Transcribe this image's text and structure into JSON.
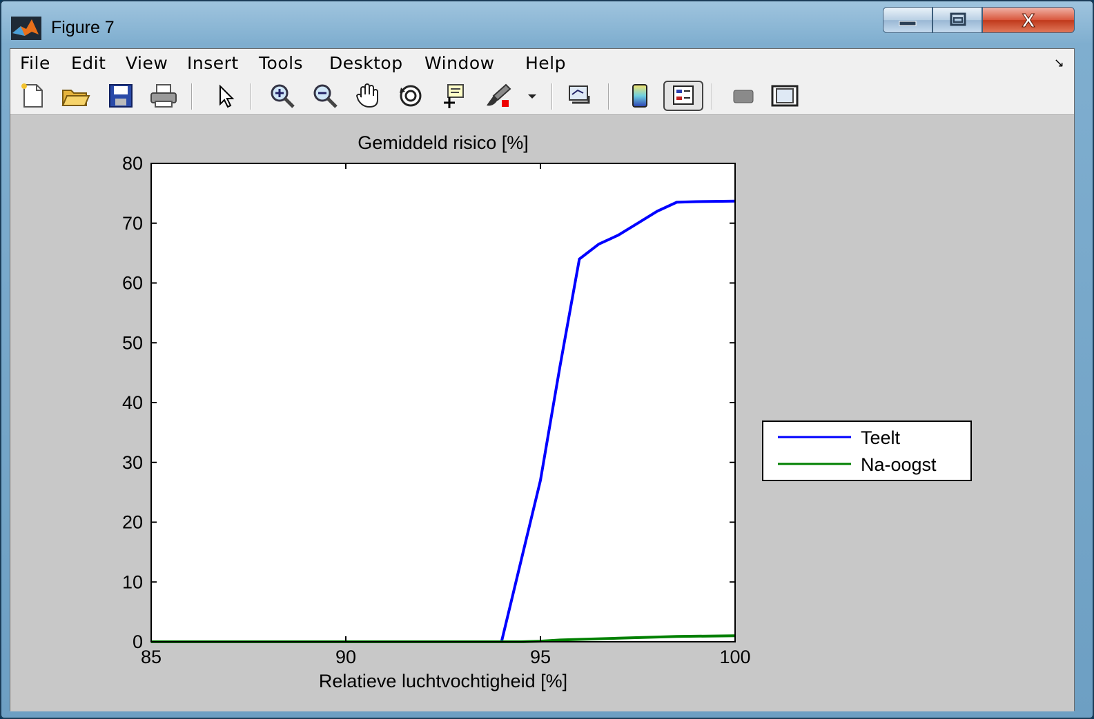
{
  "window": {
    "title": "Figure 7",
    "min_icon": "minimize-icon",
    "max_icon": "maximize-icon",
    "close_icon": "close-icon",
    "close_glyph": "X"
  },
  "menu": [
    "File",
    "Edit",
    "View",
    "Insert",
    "Tools",
    "Desktop",
    "Window",
    "Help"
  ],
  "toolbar": [
    "new-figure-icon",
    "open-file-icon",
    "save-icon",
    "print-icon",
    "pointer-icon",
    "zoom-in-icon",
    "zoom-out-icon",
    "pan-hand-icon",
    "rotate-3d-icon",
    "data-cursor-icon",
    "brush-icon",
    "dropdown-arrow-icon",
    "link-plot-icon",
    "colorbar-icon",
    "legend-icon",
    "hide-plot-tools-icon",
    "show-plot-tools-icon"
  ],
  "colors": {
    "teelt": "#0000ff",
    "naoogst": "#008000"
  },
  "chart_data": {
    "type": "line",
    "title": "Gemiddeld risico [%]",
    "xlabel": "Relatieve luchtvochtigheid [%]",
    "ylabel": "",
    "xlim": [
      85,
      100
    ],
    "ylim": [
      0,
      80
    ],
    "xticks": [
      "85",
      "90",
      "95",
      "100"
    ],
    "yticks": [
      "0",
      "10",
      "20",
      "30",
      "40",
      "50",
      "60",
      "70",
      "80"
    ],
    "grid": false,
    "legend_position": "outside-right",
    "series": [
      {
        "name": "Teelt",
        "color": "#0000ff",
        "x": [
          85,
          94,
          94.5,
          95,
          95.5,
          96,
          96.5,
          97,
          97.5,
          98,
          98.5,
          99,
          100
        ],
        "y": [
          0,
          0,
          13.5,
          27,
          46,
          64,
          66.5,
          68,
          70,
          72,
          73.5,
          73.6,
          73.7
        ]
      },
      {
        "name": "Na-oogst",
        "color": "#008000",
        "x": [
          85,
          94.5,
          95,
          95.5,
          96,
          97,
          98,
          98.5,
          100
        ],
        "y": [
          0,
          0,
          0.1,
          0.3,
          0.4,
          0.6,
          0.8,
          0.9,
          1.0
        ]
      }
    ]
  }
}
